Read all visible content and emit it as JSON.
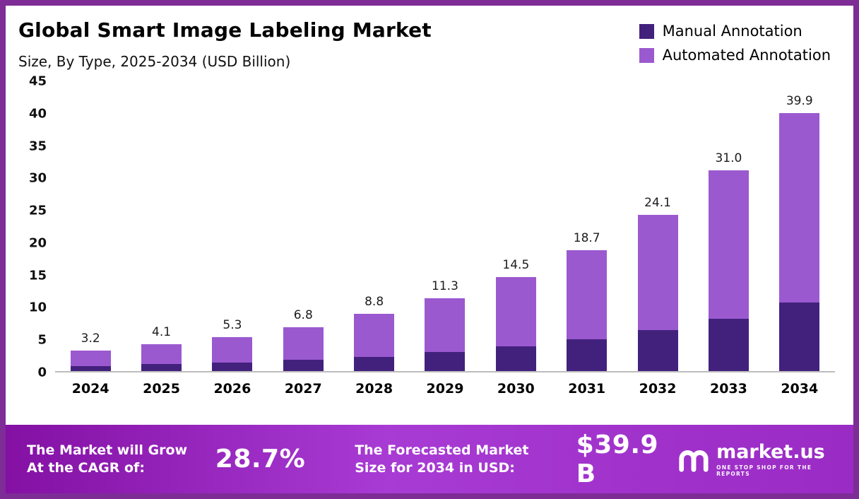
{
  "header": {
    "title": "Global Smart Image Labeling Market",
    "subtitle": "Size, By Type, 2025-2034 (USD Billion)"
  },
  "legend": [
    {
      "label": "Manual Annotation",
      "color": "#42217d"
    },
    {
      "label": "Automated Annotation",
      "color": "#9b59d0"
    }
  ],
  "chart_data": {
    "type": "bar",
    "stacked": true,
    "title": "Global Smart Image Labeling Market",
    "subtitle": "Size, By Type, 2025-2034 (USD Billion)",
    "xlabel": "",
    "ylabel": "",
    "ylim": [
      0,
      45
    ],
    "yticks": [
      0,
      5,
      10,
      15,
      20,
      25,
      30,
      35,
      40,
      45
    ],
    "categories": [
      "2024",
      "2025",
      "2026",
      "2027",
      "2028",
      "2029",
      "2030",
      "2031",
      "2032",
      "2033",
      "2034"
    ],
    "series": [
      {
        "name": "Manual Annotation",
        "color": "#42217d",
        "values": [
          0.8,
          1.1,
          1.3,
          1.7,
          2.2,
          2.9,
          3.8,
          4.9,
          6.3,
          8.1,
          10.6
        ]
      },
      {
        "name": "Automated Annotation",
        "color": "#9b59d0",
        "values": [
          2.4,
          3.0,
          4.0,
          5.1,
          6.6,
          8.4,
          10.7,
          13.8,
          17.8,
          22.9,
          29.3
        ]
      }
    ],
    "totals": [
      3.2,
      4.1,
      5.3,
      6.8,
      8.8,
      11.3,
      14.5,
      18.7,
      24.1,
      31.0,
      39.9
    ],
    "total_labels": [
      "3.2",
      "4.1",
      "5.3",
      "6.8",
      "8.8",
      "11.3",
      "14.5",
      "18.7",
      "24.1",
      "31.0",
      "39.9"
    ],
    "legend_position": "top-right",
    "grid": false
  },
  "footer": {
    "cagr_label": "The Market will Grow At the CAGR of:",
    "cagr_value": "28.7%",
    "forecast_label": "The Forecasted Market Size for 2034 in USD:",
    "forecast_value": "$39.9 B",
    "brand_name": "market.us",
    "brand_tagline": "ONE STOP SHOP FOR THE REPORTS"
  }
}
